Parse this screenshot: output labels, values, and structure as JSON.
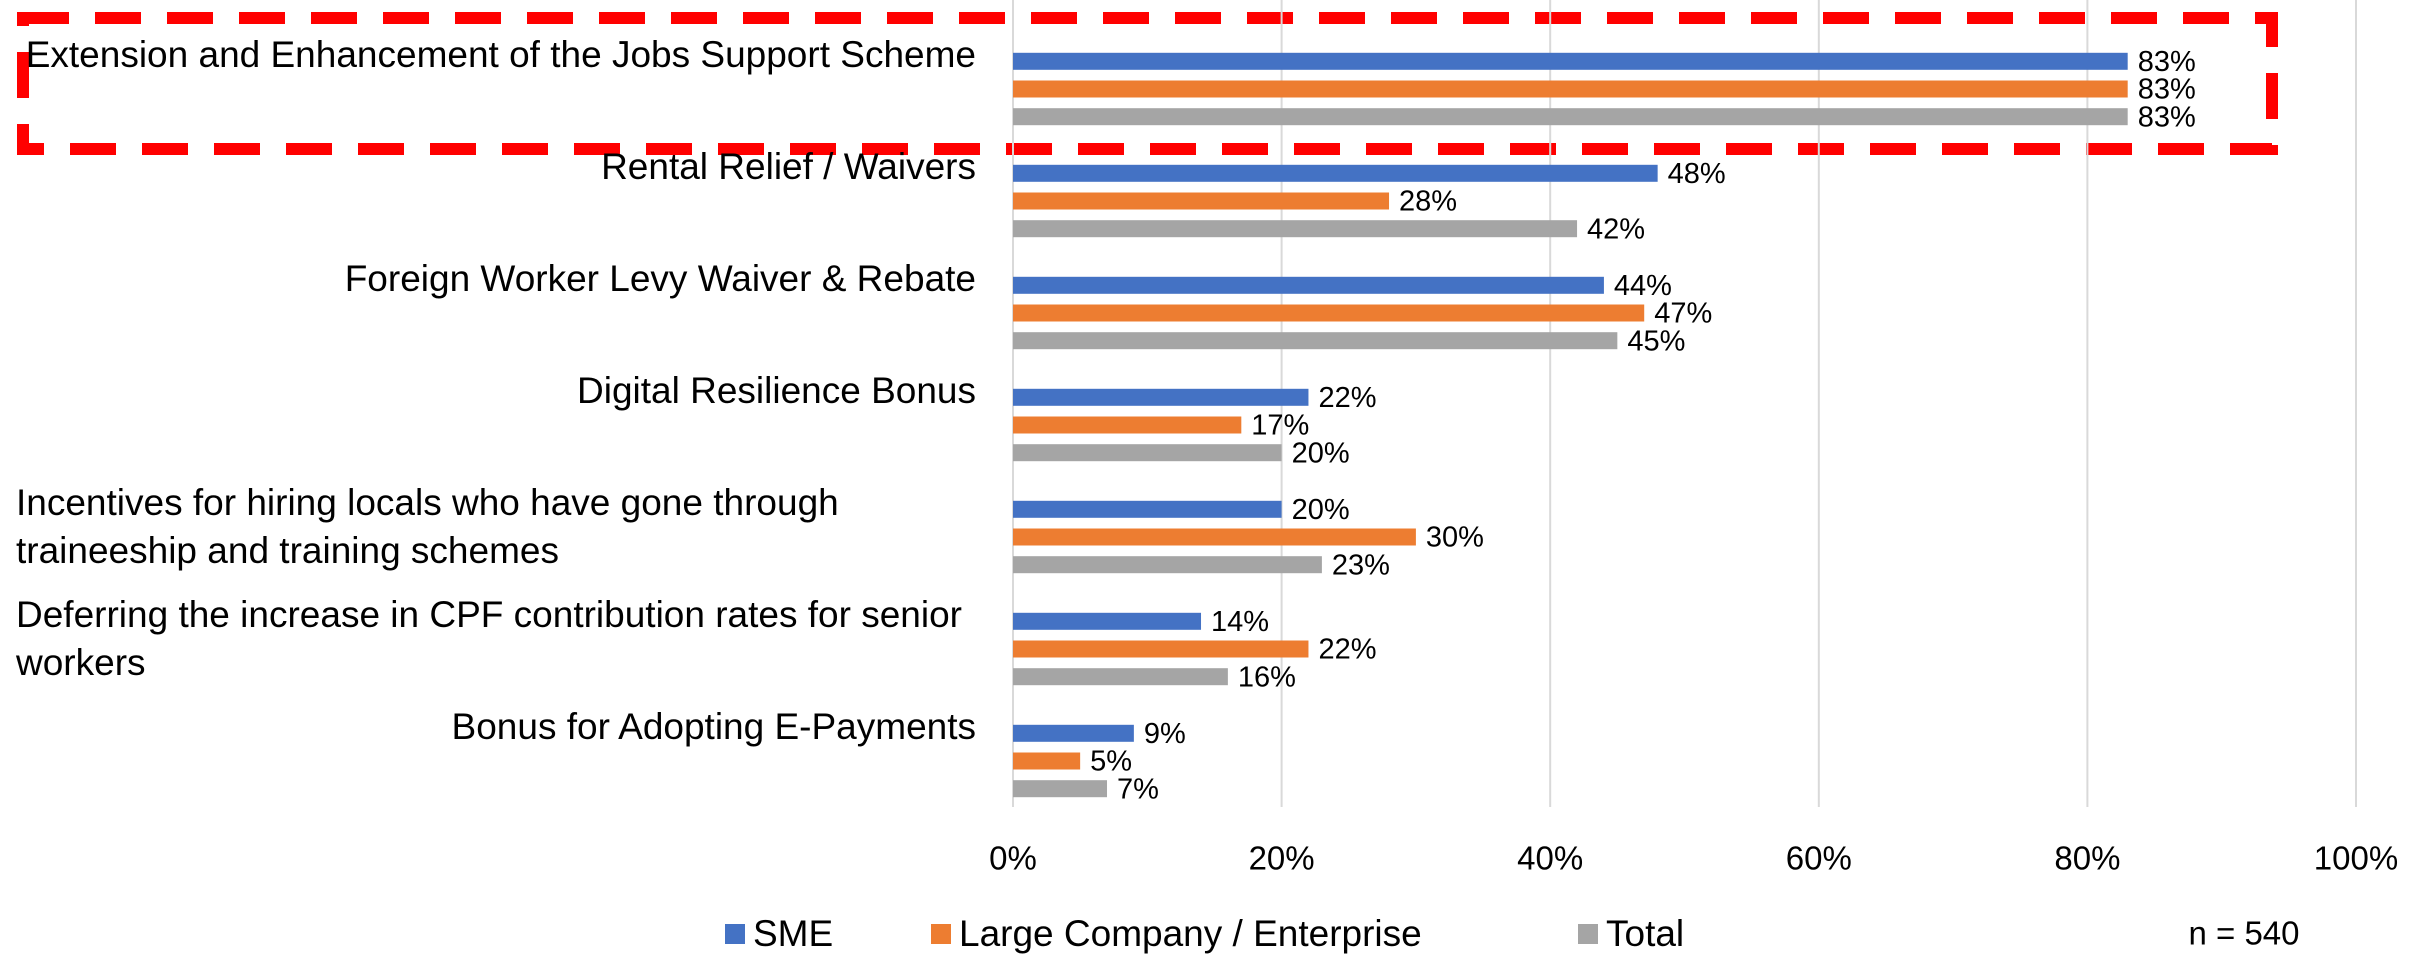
{
  "chart_data": {
    "type": "barh",
    "categories": [
      "Extension and Enhancement of the Jobs Support Scheme",
      "Rental Relief / Waivers",
      "Foreign Worker Levy Waiver & Rebate",
      "Digital Resilience Bonus",
      "Incentives for hiring locals who have gone through traineeship and training schemes",
      "Deferring the increase in CPF contribution rates for senior workers",
      "Bonus for Adopting E-Payments"
    ],
    "series": [
      {
        "name": "SME",
        "color": "#4472c4",
        "values": [
          83,
          48,
          44,
          22,
          20,
          14,
          9
        ],
        "value_labels": [
          "83%",
          "48%",
          "44%",
          "22%",
          "20%",
          "14%",
          "9%"
        ]
      },
      {
        "name": "Large Company / Enterprise",
        "color": "#ed7d31",
        "values": [
          83,
          28,
          47,
          17,
          30,
          22,
          5
        ],
        "value_labels": [
          "83%",
          "28%",
          "47%",
          "17%",
          "30%",
          "22%",
          "5%"
        ]
      },
      {
        "name": "Total",
        "color": "#a5a5a5",
        "values": [
          83,
          42,
          45,
          20,
          23,
          16,
          7
        ],
        "value_labels": [
          "83%",
          "42%",
          "45%",
          "20%",
          "23%",
          "16%",
          "7%"
        ]
      }
    ],
    "xlim": [
      0,
      100
    ],
    "xticks": [
      {
        "value": 0,
        "label": "0%"
      },
      {
        "value": 20,
        "label": "20%"
      },
      {
        "value": 40,
        "label": "40%"
      },
      {
        "value": 60,
        "label": "60%"
      },
      {
        "value": 80,
        "label": "80%"
      },
      {
        "value": 100,
        "label": "100%"
      }
    ],
    "grid": true,
    "legend": "bottom",
    "annotation": "n = 540"
  }
}
